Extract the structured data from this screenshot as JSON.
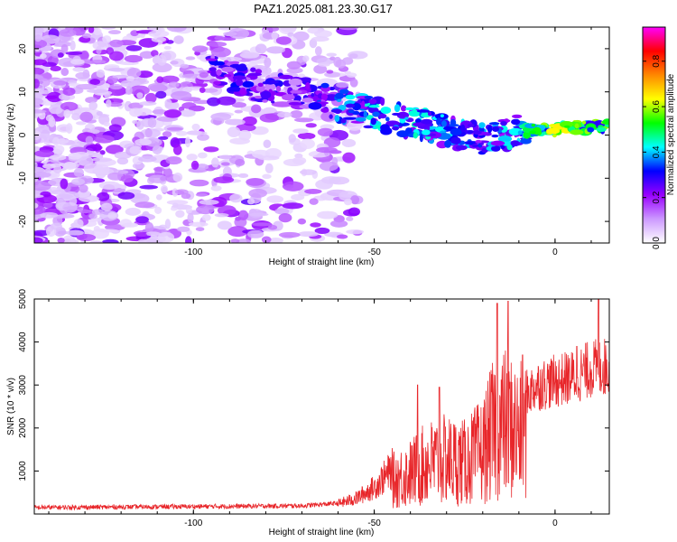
{
  "title": "PAZ1.2025.081.23.30.G17",
  "chart_data": [
    {
      "type": "heatmap",
      "xlabel": "Height of straight line (km)",
      "ylabel": "Frequency (Hz)",
      "xlim": [
        -144,
        15
      ],
      "ylim": [
        -25,
        25
      ],
      "xticks": [
        -100,
        -50,
        0
      ],
      "yticks": [
        -20,
        -10,
        0,
        10,
        20
      ],
      "x_tick_labels": [
        "-100",
        "-50",
        "0"
      ],
      "y_tick_labels": [
        "-20",
        "-10",
        "0",
        "10",
        "20"
      ],
      "colorbar": {
        "label": "Normalized spectral amplitude",
        "range": [
          0,
          0.95
        ],
        "ticks": [
          0.0,
          0.2,
          0.4,
          0.6,
          0.8
        ],
        "tick_labels": [
          "0.0",
          "0.2",
          "0.4",
          "0.6",
          "0.8"
        ],
        "colors": [
          "#ffffff",
          "#cc99ff",
          "#9900ff",
          "#0000ff",
          "#00ffff",
          "#00ff00",
          "#ffff00",
          "#ff8800",
          "#ff0000",
          "#ff00ff"
        ]
      },
      "signal_track": [
        {
          "x": -95,
          "y": 16,
          "amp": 0.22
        },
        {
          "x": -85,
          "y": 12,
          "amp": 0.2
        },
        {
          "x": -70,
          "y": 10,
          "amp": 0.18
        },
        {
          "x": -60,
          "y": 7,
          "amp": 0.28
        },
        {
          "x": -50,
          "y": 5,
          "amp": 0.32
        },
        {
          "x": -40,
          "y": 3,
          "amp": 0.34
        },
        {
          "x": -30,
          "y": 1,
          "amp": 0.3
        },
        {
          "x": -20,
          "y": -1,
          "amp": 0.28
        },
        {
          "x": -10,
          "y": 1,
          "amp": 0.35
        },
        {
          "x": 0,
          "y": 1.5,
          "amp": 0.6
        },
        {
          "x": 10,
          "y": 2,
          "amp": 0.5
        }
      ]
    },
    {
      "type": "line",
      "xlabel": "Height of straight line (km)",
      "ylabel": "SNR (10 * v/v)",
      "xlim": [
        -144,
        15
      ],
      "ylim": [
        0,
        5000
      ],
      "xticks": [
        -100,
        -50,
        0
      ],
      "yticks": [
        1000,
        2000,
        3000,
        4000,
        5000
      ],
      "x_tick_labels": [
        "-100",
        "-50",
        "0"
      ],
      "y_tick_labels": [
        "1000",
        "2000",
        "3000",
        "4000",
        "5000"
      ],
      "color": "#e8262a",
      "envelope": [
        {
          "x": -144,
          "y": 150
        },
        {
          "x": -70,
          "y": 190
        },
        {
          "x": -60,
          "y": 250
        },
        {
          "x": -55,
          "y": 380
        },
        {
          "x": -50,
          "y": 650
        },
        {
          "x": -45,
          "y": 1100
        },
        {
          "x": -40,
          "y": 1350
        },
        {
          "x": -35,
          "y": 1700
        },
        {
          "x": -30,
          "y": 1800
        },
        {
          "x": -25,
          "y": 1700
        },
        {
          "x": -20,
          "y": 2100
        },
        {
          "x": -17,
          "y": 2800
        },
        {
          "x": -14,
          "y": 3000
        },
        {
          "x": -10,
          "y": 2700
        },
        {
          "x": -5,
          "y": 3050
        },
        {
          "x": 0,
          "y": 3150
        },
        {
          "x": 5,
          "y": 3250
        },
        {
          "x": 10,
          "y": 3450
        },
        {
          "x": 15,
          "y": 3500
        }
      ],
      "peaks": [
        {
          "x": -38,
          "y": 3000
        },
        {
          "x": -32,
          "y": 2950
        },
        {
          "x": -16,
          "y": 4900
        },
        {
          "x": -13,
          "y": 4950
        },
        {
          "x": -9,
          "y": 3700
        },
        {
          "x": 6,
          "y": 3900
        },
        {
          "x": 12,
          "y": 5000
        }
      ]
    }
  ]
}
